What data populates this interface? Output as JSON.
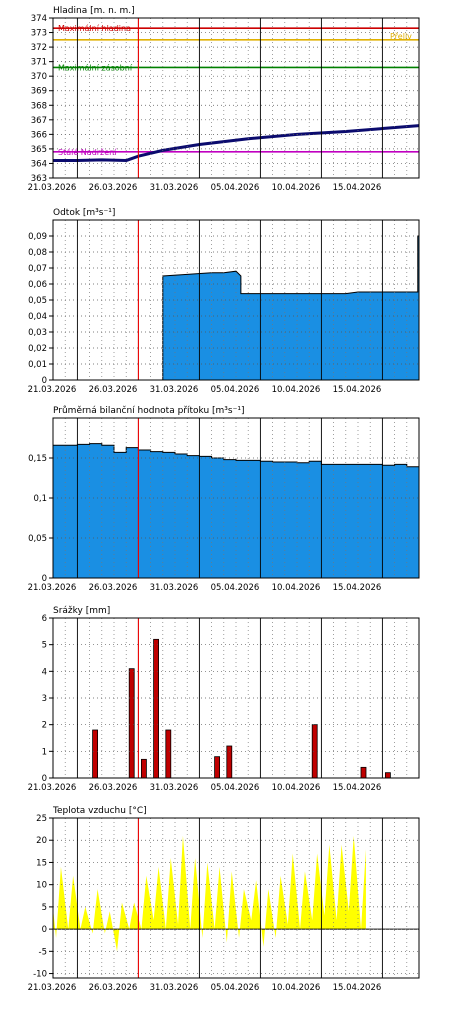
{
  "chart_data": [
    {
      "type": "line",
      "title": "Hladina [m. n. m.]",
      "ylim": [
        363,
        374
      ],
      "yticks": [
        363,
        364,
        365,
        366,
        367,
        368,
        369,
        370,
        371,
        372,
        373,
        374
      ],
      "x_dates": [
        "21.03.2026",
        "26.03.2026",
        "31.03.2026",
        "05.04.2026",
        "10.04.2026",
        "15.04.2026"
      ],
      "current_day": 7.0,
      "reference_lines": [
        {
          "label": "Maximální hladina",
          "value": 373.3,
          "color": "#cc0000"
        },
        {
          "label": "Přeliv",
          "value": 372.5,
          "color": "#e0b000"
        },
        {
          "label": "Maximální zásobní",
          "value": 370.6,
          "color": "#008000"
        },
        {
          "label": "Stálé Nadržení",
          "value": 364.8,
          "color": "#c000c0"
        }
      ],
      "series": [
        {
          "color": "#0b0b6e",
          "x": [
            -3,
            0,
            2,
            4,
            6,
            7,
            9,
            12,
            16,
            20,
            24,
            27,
            30
          ],
          "values": [
            364.2,
            364.2,
            364.2,
            364.25,
            364.2,
            364.5,
            364.9,
            365.3,
            365.7,
            366.0,
            366.2,
            366.4,
            366.6
          ]
        }
      ]
    },
    {
      "type": "area",
      "title": "Odtok [m³s⁻¹]",
      "ylim": [
        0,
        0.1
      ],
      "yticks": [
        0,
        0.01,
        0.02,
        0.03,
        0.04,
        0.05,
        0.06,
        0.07,
        0.08,
        0.09
      ],
      "ytick_labels": [
        "0",
        "0,01",
        "0,02",
        "0,03",
        "0,04",
        "0,05",
        "0,06",
        "0,07",
        "0,08",
        "0,09"
      ],
      "x_dates": [
        "21.03.2026",
        "26.03.2026",
        "31.03.2026",
        "05.04.2026",
        "10.04.2026",
        "15.04.2026"
      ],
      "current_day": 7.0,
      "series": [
        {
          "color": "#1a8fe3",
          "x": [
            9.0,
            9.0,
            11,
            13,
            14,
            15,
            15.4,
            15.4,
            20,
            24,
            25,
            28,
            29.9,
            29.9,
            30
          ],
          "values": [
            0,
            0.065,
            0.066,
            0.067,
            0.067,
            0.068,
            0.065,
            0.054,
            0.054,
            0.054,
            0.055,
            0.055,
            0.055,
            0.09,
            0.09
          ]
        }
      ]
    },
    {
      "type": "area",
      "title": "Průměrná bilanční hodnota přítoku [m³s⁻¹]",
      "ylim": [
        0,
        0.2
      ],
      "yticks": [
        0,
        0.05,
        0.1,
        0.15
      ],
      "ytick_labels": [
        "0",
        "0,05",
        "0,1",
        "0,15"
      ],
      "x_dates": [
        "21.03.2026",
        "26.03.2026",
        "31.03.2026",
        "05.04.2026",
        "10.04.2026",
        "15.04.2026"
      ],
      "current_day": 7.0,
      "series": [
        {
          "color": "#1a8fe3",
          "steps": [
            0.172,
            0.17,
            0.167,
            0.166,
            0.166,
            0.167,
            0.168,
            0.166,
            0.157,
            0.163,
            0.16,
            0.158,
            0.157,
            0.155,
            0.153,
            0.152,
            0.15,
            0.148,
            0.147,
            0.147,
            0.146,
            0.145,
            0.145,
            0.144,
            0.146,
            0.142,
            0.142,
            0.142,
            0.142,
            0.142,
            0.141,
            0.142,
            0.139
          ]
        }
      ]
    },
    {
      "type": "bar",
      "title": "Srážky [mm]",
      "ylim": [
        0,
        6
      ],
      "yticks": [
        0,
        1,
        2,
        3,
        4,
        5,
        6
      ],
      "x_dates": [
        "21.03.2026",
        "26.03.2026",
        "31.03.2026",
        "05.04.2026",
        "10.04.2026",
        "15.04.2026"
      ],
      "current_day": 7.0,
      "series": [
        {
          "color": "#c00000",
          "days": [
            -2,
            3,
            6,
            7,
            8,
            9,
            13,
            14,
            21,
            25,
            27
          ],
          "values": [
            0.1,
            1.8,
            4.1,
            0.7,
            5.2,
            1.8,
            0.8,
            1.2,
            2.0,
            0.4,
            0.2
          ]
        }
      ]
    },
    {
      "type": "area",
      "title": "Teplota vzduchu [°C]",
      "ylim": [
        -11,
        25
      ],
      "yticks": [
        -10,
        -5,
        0,
        5,
        10,
        15,
        20,
        25
      ],
      "x_dates": [
        "21.03.2026",
        "26.03.2026",
        "31.03.2026",
        "05.04.2026",
        "10.04.2026",
        "15.04.2026"
      ],
      "current_day": 7.0,
      "series": [
        {
          "color": "#ffff00",
          "day_max": [
            9,
            14,
            14,
            14,
            12,
            5,
            9,
            4,
            6,
            6,
            12,
            14,
            16,
            21,
            16,
            15,
            14,
            13,
            9,
            11,
            9,
            12,
            17,
            13,
            17,
            19,
            19,
            21,
            18
          ],
          "day_min": [
            -4,
            1,
            -1,
            -2,
            0,
            0,
            -1,
            -1,
            -5,
            0,
            0,
            2,
            0,
            1,
            0,
            -2,
            0,
            -3,
            -2,
            2,
            -4,
            -2,
            1,
            0,
            2,
            3,
            2,
            4,
            0
          ]
        }
      ]
    }
  ]
}
